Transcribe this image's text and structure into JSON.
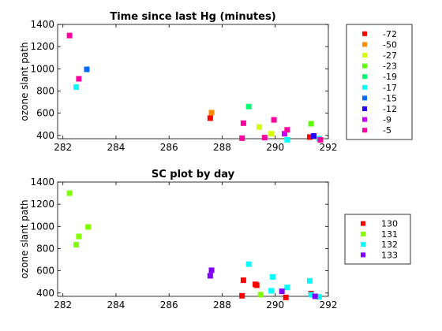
{
  "chart_data": [
    {
      "type": "scatter",
      "title": "Time since last Hg (minutes)",
      "xlabel": "",
      "ylabel": "ozone slant path",
      "xlim": [
        281.8,
        292
      ],
      "ylim": [
        370,
        1400
      ],
      "xticks": [
        "282",
        "284",
        "286",
        "288",
        "290",
        "292"
      ],
      "yticks": [
        "400",
        "600",
        "800",
        "1000",
        "1200",
        "1400"
      ],
      "grid": false,
      "legend_position": "right",
      "series": [
        {
          "name": "-72",
          "color": "#ff0000",
          "points": [
            [
              287.55,
              555
            ],
            [
              291.3,
              385
            ]
          ]
        },
        {
          "name": "-50",
          "color": "#ff8c00",
          "points": [
            [
              287.6,
              605
            ]
          ]
        },
        {
          "name": "-27",
          "color": "#d4ff00",
          "points": [
            [
              289.4,
              475
            ],
            [
              289.85,
              415
            ]
          ]
        },
        {
          "name": "-23",
          "color": "#5cff00",
          "points": [
            [
              291.35,
              505
            ]
          ]
        },
        {
          "name": "-19",
          "color": "#00ff6e",
          "points": [
            [
              289.0,
              660
            ]
          ]
        },
        {
          "name": "-17",
          "color": "#00ffff",
          "points": [
            [
              282.5,
              835
            ],
            [
              290.45,
              360
            ],
            [
              291.65,
              370
            ]
          ]
        },
        {
          "name": "-15",
          "color": "#006dff",
          "points": [
            [
              282.9,
              995
            ]
          ]
        },
        {
          "name": "-12",
          "color": "#2500ff",
          "points": [
            [
              291.45,
              395
            ]
          ]
        },
        {
          "name": "-9",
          "color": "#c800ff",
          "points": [
            [
              290.35,
              415
            ]
          ]
        },
        {
          "name": "-5",
          "color": "#ff00a0",
          "points": [
            [
              282.25,
              1300
            ],
            [
              282.6,
              910
            ],
            [
              288.8,
              510
            ],
            [
              288.75,
              375
            ],
            [
              289.6,
              380
            ],
            [
              289.95,
              540
            ],
            [
              290.45,
              450
            ],
            [
              291.7,
              360
            ]
          ]
        }
      ]
    },
    {
      "type": "scatter",
      "title": "SC plot by day",
      "xlabel": "",
      "ylabel": "ozone slant path",
      "xlim": [
        281.8,
        292
      ],
      "ylim": [
        370,
        1400
      ],
      "xticks": [
        "282",
        "284",
        "286",
        "288",
        "290",
        "292"
      ],
      "yticks": [
        "400",
        "600",
        "800",
        "1000",
        "1200",
        "1400"
      ],
      "grid": false,
      "legend_position": "right",
      "series": [
        {
          "name": "130",
          "color": "#ff0000",
          "points": [
            [
              288.75,
              375
            ],
            [
              288.8,
              515
            ],
            [
              289.25,
              478
            ],
            [
              289.3,
              470
            ],
            [
              290.4,
              360
            ],
            [
              291.35,
              395
            ]
          ]
        },
        {
          "name": "131",
          "color": "#80ff00",
          "points": [
            [
              282.25,
              1300
            ],
            [
              282.5,
              835
            ],
            [
              282.6,
              910
            ],
            [
              282.95,
              995
            ],
            [
              289.45,
              385
            ]
          ]
        },
        {
          "name": "132",
          "color": "#00ffff",
          "points": [
            [
              289.0,
              660
            ],
            [
              289.85,
              420
            ],
            [
              289.9,
              545
            ],
            [
              290.45,
              450
            ],
            [
              291.3,
              510
            ],
            [
              291.35,
              385
            ],
            [
              291.65,
              365
            ]
          ]
        },
        {
          "name": "133",
          "color": "#8000ff",
          "points": [
            [
              287.55,
              555
            ],
            [
              287.6,
              605
            ],
            [
              290.25,
              415
            ],
            [
              291.5,
              370
            ]
          ]
        }
      ]
    }
  ]
}
